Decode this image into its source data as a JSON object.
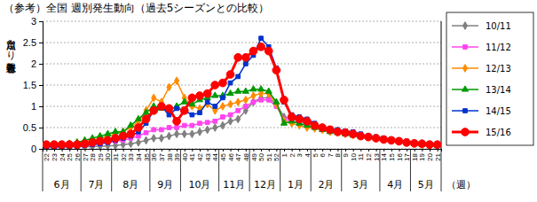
{
  "chart_data": {
    "type": "line",
    "title": "（参考）全国 週別発生動向（過去5シーズンとの比較）",
    "ylabel": "定点当たり患者報告数",
    "xlabel": "（週）",
    "categories": [
      "22",
      "23",
      "24",
      "25",
      "26",
      "27",
      "28",
      "29",
      "30",
      "31",
      "32",
      "33",
      "34",
      "35",
      "36",
      "37",
      "38",
      "39",
      "40",
      "41",
      "42",
      "43",
      "44",
      "45",
      "46",
      "47",
      "48",
      "49",
      "50",
      "51",
      "52",
      "1",
      "2",
      "3",
      "4",
      "5",
      "6",
      "7",
      "8",
      "9",
      "10",
      "11",
      "12",
      "13",
      "14",
      "15",
      "16",
      "17",
      "18",
      "19",
      "20",
      "21"
    ],
    "x_groups": [
      {
        "label": "6月",
        "start": 0,
        "end": 4
      },
      {
        "label": "7月",
        "start": 5,
        "end": 8
      },
      {
        "label": "8月",
        "start": 9,
        "end": 13
      },
      {
        "label": "9月",
        "start": 14,
        "end": 17
      },
      {
        "label": "10月",
        "start": 18,
        "end": 22
      },
      {
        "label": "11月",
        "start": 23,
        "end": 26
      },
      {
        "label": "12月",
        "start": 27,
        "end": 30
      },
      {
        "label": "1月",
        "start": 31,
        "end": 34
      },
      {
        "label": "2月",
        "start": 35,
        "end": 38
      },
      {
        "label": "3月",
        "start": 39,
        "end": 43
      },
      {
        "label": "4月",
        "start": 44,
        "end": 47
      },
      {
        "label": "5月",
        "start": 48,
        "end": 51
      }
    ],
    "ylim": [
      0,
      3
    ],
    "yticks": [
      0,
      0.5,
      1,
      1.5,
      2,
      2.5,
      3
    ],
    "grid": true,
    "legend": "right",
    "series": [
      {
        "name": "10/11",
        "color": "#808080",
        "marker": "diamond",
        "values": [
          0.03,
          0.03,
          0.03,
          0.04,
          0.04,
          0.05,
          0.05,
          0.06,
          0.07,
          0.08,
          0.1,
          0.12,
          0.15,
          0.2,
          0.25,
          0.25,
          0.3,
          0.35,
          0.35,
          0.35,
          0.4,
          0.45,
          0.5,
          0.55,
          0.65,
          0.7,
          0.9,
          1.1,
          1.2,
          1.2,
          1.05,
          0.75,
          0.7,
          0.65,
          0.6,
          0.55,
          0.5,
          0.45,
          0.42,
          0.38,
          0.35,
          0.3,
          0.28,
          0.25,
          0.22,
          0.2,
          0.18,
          0.15,
          0.12,
          0.1,
          0.08,
          0.06
        ]
      },
      {
        "name": "11/12",
        "color": "#ff44ee",
        "marker": "square",
        "values": [
          0.05,
          0.05,
          0.05,
          0.06,
          0.07,
          0.08,
          0.1,
          0.12,
          0.15,
          0.18,
          0.2,
          0.25,
          0.3,
          0.38,
          0.45,
          0.45,
          0.5,
          0.5,
          0.55,
          0.55,
          0.6,
          0.62,
          0.65,
          0.75,
          0.8,
          0.9,
          1.0,
          1.1,
          1.15,
          1.15,
          1.0,
          0.7,
          0.65,
          0.6,
          0.55,
          0.5,
          0.45,
          0.42,
          0.4,
          0.37,
          0.34,
          0.3,
          0.28,
          0.25,
          0.22,
          0.2,
          0.18,
          0.15,
          0.12,
          0.1,
          0.08,
          0.07
        ]
      },
      {
        "name": "12/13",
        "color": "#ff8c00",
        "marker": "diamond",
        "values": [
          0.08,
          0.08,
          0.1,
          0.12,
          0.15,
          0.18,
          0.2,
          0.25,
          0.3,
          0.35,
          0.4,
          0.5,
          0.65,
          0.9,
          1.2,
          1.1,
          1.45,
          1.6,
          1.2,
          1.0,
          0.95,
          1.05,
          0.9,
          1.0,
          1.05,
          1.1,
          1.15,
          1.25,
          1.3,
          1.3,
          1.05,
          0.65,
          0.6,
          0.55,
          0.5,
          0.48,
          0.45,
          0.4,
          0.38,
          0.35,
          0.32,
          0.3,
          0.27,
          0.25,
          0.22,
          0.2,
          0.17,
          0.15,
          0.12,
          0.1,
          0.08,
          0.07
        ]
      },
      {
        "name": "13/14",
        "color": "#009900",
        "marker": "triangle",
        "values": [
          0.1,
          0.1,
          0.1,
          0.12,
          0.15,
          0.2,
          0.25,
          0.3,
          0.35,
          0.4,
          0.4,
          0.55,
          0.7,
          0.85,
          1.0,
          0.95,
          0.9,
          1.0,
          1.1,
          1.05,
          1.15,
          1.2,
          1.25,
          1.25,
          1.3,
          1.35,
          1.35,
          1.4,
          1.4,
          1.35,
          1.1,
          0.6,
          0.65,
          0.6,
          0.55,
          0.5,
          0.45,
          0.4,
          0.38,
          0.35,
          0.32,
          0.3,
          0.28,
          0.25,
          0.22,
          0.2,
          0.18,
          0.15,
          0.12,
          0.1,
          0.1,
          0.08
        ]
      },
      {
        "name": "14/15",
        "color": "#0033cc",
        "marker": "square",
        "values": [
          0.05,
          0.05,
          0.05,
          0.06,
          0.06,
          0.08,
          0.1,
          0.12,
          0.15,
          0.2,
          0.25,
          0.3,
          0.4,
          0.6,
          0.9,
          1.0,
          0.8,
          0.95,
          0.9,
          0.8,
          0.85,
          1.1,
          1.0,
          1.2,
          1.55,
          1.7,
          2.0,
          2.2,
          2.6,
          2.4,
          1.9,
          1.1,
          0.8,
          0.75,
          0.7,
          0.6,
          0.5,
          0.48,
          0.45,
          0.42,
          0.4,
          0.35,
          0.3,
          0.28,
          0.25,
          0.22,
          0.2,
          0.18,
          0.15,
          0.12,
          0.1,
          0.08
        ]
      },
      {
        "name": "15/16",
        "color": "#ff0000",
        "marker": "circle",
        "values": [
          0.1,
          0.1,
          0.1,
          0.1,
          0.1,
          0.12,
          0.15,
          0.18,
          0.2,
          0.25,
          0.3,
          0.35,
          0.5,
          0.7,
          0.9,
          1.0,
          0.95,
          0.65,
          0.9,
          1.2,
          1.25,
          1.3,
          1.5,
          1.55,
          1.75,
          2.15,
          2.15,
          2.3,
          2.4,
          2.3,
          1.85,
          1.15,
          0.75,
          0.7,
          0.65,
          0.55,
          0.5,
          0.45,
          0.4,
          0.38,
          0.35,
          0.3,
          0.28,
          0.25,
          0.22,
          0.2,
          0.18,
          0.15,
          0.13,
          0.12,
          0.1,
          0.1
        ]
      }
    ]
  }
}
